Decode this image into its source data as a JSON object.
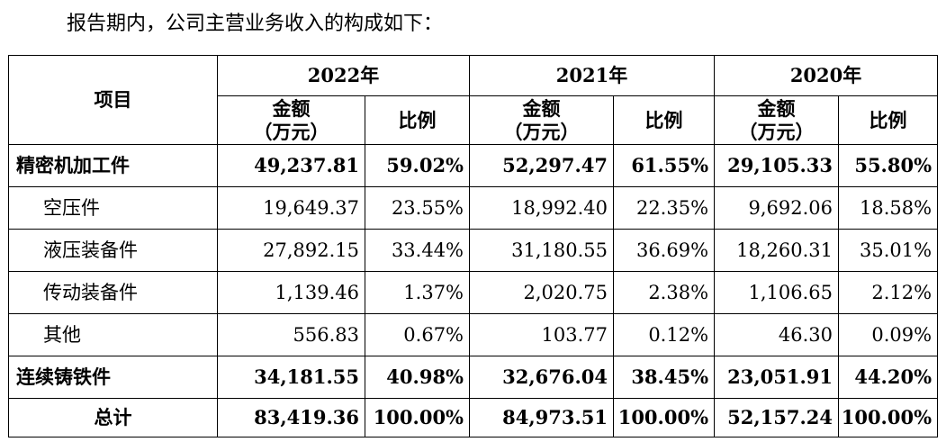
{
  "intro_text": "报告期内，公司主营业务收入的构成如下：",
  "table": {
    "item_header": "项目",
    "years": [
      "2022年",
      "2021年",
      "2020年"
    ],
    "amount_header_line1": "金额",
    "amount_header_line2": "（万元）",
    "ratio_header": "比例",
    "rows": [
      {
        "label": "精密机加工件",
        "bold": true,
        "indent": false,
        "cells": [
          "49,237.81",
          "59.02%",
          "52,297.47",
          "61.55%",
          "29,105.33",
          "55.80%"
        ]
      },
      {
        "label": "空压件",
        "bold": false,
        "indent": true,
        "cells": [
          "19,649.37",
          "23.55%",
          "18,992.40",
          "22.35%",
          "9,692.06",
          "18.58%"
        ]
      },
      {
        "label": "液压装备件",
        "bold": false,
        "indent": true,
        "cells": [
          "27,892.15",
          "33.44%",
          "31,180.55",
          "36.69%",
          "18,260.31",
          "35.01%"
        ]
      },
      {
        "label": "传动装备件",
        "bold": false,
        "indent": true,
        "cells": [
          "1,139.46",
          "1.37%",
          "2,020.75",
          "2.38%",
          "1,106.65",
          "2.12%"
        ]
      },
      {
        "label": "其他",
        "bold": false,
        "indent": true,
        "cells": [
          "556.83",
          "0.67%",
          "103.77",
          "0.12%",
          "46.30",
          "0.09%"
        ]
      },
      {
        "label": "连续铸铁件",
        "bold": true,
        "indent": false,
        "cells": [
          "34,181.55",
          "40.98%",
          "32,676.04",
          "38.45%",
          "23,051.91",
          "44.20%"
        ]
      },
      {
        "label": "总计",
        "bold": true,
        "indent": false,
        "center_label": true,
        "cells": [
          "83,419.36",
          "100.00%",
          "84,973.51",
          "100.00%",
          "52,157.24",
          "100.00%"
        ]
      }
    ]
  }
}
